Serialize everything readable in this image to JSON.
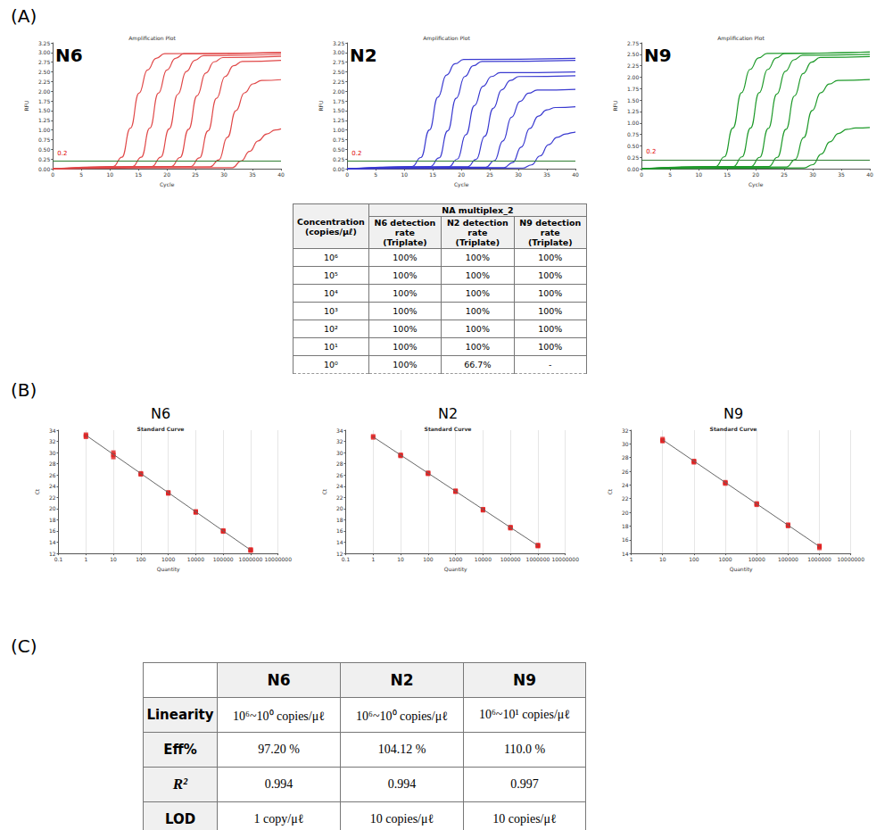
{
  "panel_labels": [
    "(A)",
    "(B)",
    "(C)"
  ],
  "chart_data": [
    {
      "type": "line",
      "title": "Amplification Plot",
      "annotation": "N6",
      "x_label": "Cycle",
      "y_label": "RFU",
      "xlim": [
        0,
        40
      ],
      "xticks": [
        0,
        5,
        10,
        15,
        20,
        25,
        30,
        35,
        40
      ],
      "ylim": [
        0,
        3.25
      ],
      "yticks": [
        {
          "value": 0,
          "label": "0.00"
        },
        {
          "value": 0.25,
          "label": "0.25"
        },
        {
          "value": 0.5,
          "label": "0.50"
        },
        {
          "value": 0.75,
          "label": "0.75"
        },
        {
          "value": 1,
          "label": "1.00"
        },
        {
          "value": 1.25,
          "label": "1.25"
        },
        {
          "value": 1.5,
          "label": "1.50"
        },
        {
          "value": 1.75,
          "label": "1.75"
        },
        {
          "value": 2,
          "label": "2.00"
        },
        {
          "value": 2.25,
          "label": "2.25"
        },
        {
          "value": 2.5,
          "label": "2.50"
        },
        {
          "value": 2.75,
          "label": "2.75"
        },
        {
          "value": 3,
          "label": "3.00"
        },
        {
          "value": 3.25,
          "label": "3.25"
        }
      ],
      "threshold": 0.2,
      "grid": false,
      "color": "#e04848",
      "line_style": "solid",
      "series": [
        {
          "x": [
            0,
            10.6,
            12.1,
            13.6,
            15.1,
            16.6,
            18.1,
            19.6,
            40
          ],
          "values": [
            0,
            0.06,
            0.3,
            1.05,
            1.95,
            2.55,
            2.85,
            2.97,
            3.0
          ]
        },
        {
          "x": [
            0,
            14,
            15.5,
            17,
            18.5,
            20,
            21.5,
            23,
            40
          ],
          "values": [
            0,
            0.06,
            0.3,
            1.05,
            1.95,
            2.55,
            2.85,
            2.97,
            3.0
          ]
        },
        {
          "x": [
            0,
            17.4,
            18.9,
            20.4,
            21.9,
            23.4,
            24.9,
            26.4,
            40
          ],
          "values": [
            0,
            0.06,
            0.3,
            1.03,
            1.92,
            2.51,
            2.8,
            2.92,
            2.95
          ]
        },
        {
          "x": [
            0,
            20.8,
            22.3,
            23.8,
            25.3,
            26.8,
            28.3,
            29.8,
            40
          ],
          "values": [
            0,
            0.06,
            0.29,
            1.02,
            1.89,
            2.47,
            2.76,
            2.87,
            2.9
          ]
        },
        {
          "x": [
            0,
            24.2,
            25.7,
            27.2,
            28.7,
            30.2,
            31.7,
            33.2,
            40
          ],
          "values": [
            0,
            0.06,
            0.28,
            0.98,
            1.82,
            2.38,
            2.66,
            2.77,
            2.8
          ]
        },
        {
          "x": [
            0,
            27.6,
            29.1,
            30.6,
            32.1,
            33.6,
            35.1,
            36.6,
            40
          ],
          "values": [
            0,
            0.05,
            0.23,
            0.81,
            1.5,
            1.96,
            2.19,
            2.28,
            2.3
          ]
        },
        {
          "x": [
            0,
            31.5,
            33,
            34.5,
            36,
            37.5,
            39,
            40
          ],
          "values": [
            0,
            0.03,
            0.2,
            0.45,
            0.72,
            0.9,
            1.0,
            1.03
          ]
        }
      ]
    },
    {
      "type": "line",
      "title": "Amplification Plot",
      "annotation": "N2",
      "x_label": "Cycle",
      "y_label": "RFU",
      "xlim": [
        0,
        40
      ],
      "xticks": [
        0,
        5,
        10,
        15,
        20,
        25,
        30,
        35,
        40
      ],
      "ylim": [
        0,
        3.25
      ],
      "yticks": [
        {
          "value": 0,
          "label": "0.00"
        },
        {
          "value": 0.25,
          "label": "0.25"
        },
        {
          "value": 0.5,
          "label": "0.50"
        },
        {
          "value": 0.75,
          "label": "0.75"
        },
        {
          "value": 1,
          "label": "1.00"
        },
        {
          "value": 1.25,
          "label": "1.25"
        },
        {
          "value": 1.5,
          "label": "1.50"
        },
        {
          "value": 1.75,
          "label": "1.75"
        },
        {
          "value": 2,
          "label": "2.00"
        },
        {
          "value": 2.25,
          "label": "2.25"
        },
        {
          "value": 2.5,
          "label": "2.50"
        },
        {
          "value": 2.75,
          "label": "2.75"
        },
        {
          "value": 3,
          "label": "3.00"
        },
        {
          "value": 3.25,
          "label": "3.25"
        }
      ],
      "threshold": 0.2,
      "grid": false,
      "color": "#3a3ad0",
      "line_style": "solid",
      "series": [
        {
          "x": [
            0,
            11.4,
            12.9,
            14.4,
            15.9,
            17.4,
            18.9,
            20.4,
            40
          ],
          "values": [
            0,
            0.06,
            0.29,
            1.0,
            1.85,
            2.42,
            2.71,
            2.82,
            2.85
          ]
        },
        {
          "x": [
            0,
            14.6,
            16.1,
            17.6,
            19.1,
            20.6,
            22.1,
            23.6,
            40
          ],
          "values": [
            0,
            0.06,
            0.28,
            0.98,
            1.82,
            2.38,
            2.66,
            2.77,
            2.8
          ]
        },
        {
          "x": [
            0,
            17.8,
            19.3,
            20.8,
            22.3,
            23.8,
            25.3,
            26.8,
            40
          ],
          "values": [
            0,
            0.05,
            0.25,
            0.88,
            1.63,
            2.13,
            2.38,
            2.48,
            2.5
          ]
        },
        {
          "x": [
            0,
            21.1,
            22.6,
            24.1,
            25.6,
            27.1,
            28.6,
            30.1,
            40
          ],
          "values": [
            0,
            0.05,
            0.24,
            0.84,
            1.56,
            2.04,
            2.28,
            2.38,
            2.4
          ]
        },
        {
          "x": [
            0,
            24.3,
            25.8,
            27.3,
            28.8,
            30.3,
            31.8,
            33.3,
            40
          ],
          "values": [
            0,
            0.04,
            0.21,
            0.72,
            1.33,
            1.74,
            1.95,
            2.03,
            2.05
          ]
        },
        {
          "x": [
            0,
            27.5,
            29,
            30.5,
            32,
            33.5,
            35,
            36.5,
            40
          ],
          "values": [
            0,
            0.03,
            0.16,
            0.56,
            1.04,
            1.36,
            1.52,
            1.58,
            1.6
          ]
        },
        {
          "x": [
            0,
            30.8,
            32.3,
            33.8,
            35.3,
            36.8,
            38.3,
            39.8,
            40
          ],
          "values": [
            0,
            0.02,
            0.1,
            0.33,
            0.62,
            0.81,
            0.9,
            0.94,
            0.95
          ]
        }
      ]
    },
    {
      "type": "line",
      "title": "Amplification Plot",
      "annotation": "N9",
      "x_label": "Cycle",
      "y_label": "RFU",
      "xlim": [
        0,
        40
      ],
      "xticks": [
        0,
        5,
        10,
        15,
        20,
        25,
        30,
        35,
        40
      ],
      "ylim": [
        0,
        2.75
      ],
      "yticks": [
        {
          "value": 0,
          "label": "0.00"
        },
        {
          "value": 0.25,
          "label": "0.25"
        },
        {
          "value": 0.5,
          "label": "0.50"
        },
        {
          "value": 0.75,
          "label": "0.75"
        },
        {
          "value": 1,
          "label": "1.00"
        },
        {
          "value": 1.25,
          "label": "1.25"
        },
        {
          "value": 1.5,
          "label": "1.50"
        },
        {
          "value": 1.75,
          "label": "1.75"
        },
        {
          "value": 2,
          "label": "2.00"
        },
        {
          "value": 2.25,
          "label": "2.25"
        },
        {
          "value": 2.5,
          "label": "2.50"
        },
        {
          "value": 2.75,
          "label": "2.75"
        }
      ],
      "threshold": 0.2,
      "grid": false,
      "color": "#1e9a2a",
      "line_style": "solid",
      "series": [
        {
          "x": [
            0,
            13,
            14.5,
            16,
            17.5,
            19,
            20.5,
            22,
            40
          ],
          "values": [
            0,
            0.05,
            0.26,
            0.89,
            1.66,
            2.17,
            2.42,
            2.52,
            2.55
          ]
        },
        {
          "x": [
            0,
            16.1,
            17.6,
            19.1,
            20.6,
            22.1,
            23.6,
            25.1,
            40
          ],
          "values": [
            0,
            0.05,
            0.26,
            0.89,
            1.66,
            2.17,
            2.42,
            2.52,
            2.55
          ]
        },
        {
          "x": [
            0,
            19.2,
            20.7,
            22.2,
            23.7,
            25.2,
            26.7,
            28.2,
            40
          ],
          "values": [
            0,
            0.05,
            0.25,
            0.88,
            1.63,
            2.13,
            2.38,
            2.48,
            2.5
          ]
        },
        {
          "x": [
            0,
            22.3,
            23.8,
            25.3,
            26.8,
            28.3,
            29.8,
            31.3,
            40
          ],
          "values": [
            0,
            0.05,
            0.25,
            0.86,
            1.59,
            2.08,
            2.33,
            2.43,
            2.45
          ]
        },
        {
          "x": [
            0,
            25.4,
            26.9,
            28.4,
            29.9,
            31.4,
            32.9,
            34.4,
            40
          ],
          "values": [
            0,
            0.04,
            0.2,
            0.68,
            1.27,
            1.66,
            1.85,
            1.93,
            1.95
          ]
        },
        {
          "x": [
            0,
            28.5,
            30,
            31.5,
            33,
            34.5,
            36,
            37.5,
            40
          ],
          "values": [
            0,
            0.02,
            0.09,
            0.32,
            0.59,
            0.77,
            0.86,
            0.89,
            0.9
          ]
        }
      ]
    },
    {
      "type": "scatter",
      "heading": "N6",
      "title": "Standard Curve",
      "x_label": "Quantity",
      "y_label": "Ct",
      "log": "x",
      "xlim": [
        0.1,
        10000000
      ],
      "xticks": [
        0.1,
        1,
        10,
        100,
        1000,
        10000,
        100000,
        1000000,
        10000000
      ],
      "ylim": [
        12,
        34
      ],
      "yticks": [
        12,
        14,
        16,
        18,
        20,
        22,
        24,
        26,
        28,
        30,
        32,
        34
      ],
      "grid": true,
      "color": "#e02020",
      "marker": "square",
      "points": {
        "x": [
          1,
          1,
          1,
          10,
          10,
          10,
          100,
          100,
          100,
          1000,
          1000,
          1000,
          10000,
          10000,
          10000,
          100000,
          100000,
          100000,
          1000000,
          1000000,
          1000000
        ],
        "values": [
          32.8,
          33.0,
          33.2,
          29.2,
          29.6,
          30.0,
          26.1,
          26.2,
          26.3,
          22.7,
          22.8,
          22.9,
          19.3,
          19.4,
          19.5,
          15.9,
          16.0,
          16.1,
          12.5,
          12.6,
          12.7
        ]
      },
      "fit": {
        "x": [
          1,
          1000000
        ],
        "values": [
          33.1,
          12.6
        ]
      }
    },
    {
      "type": "scatter",
      "heading": "N2",
      "title": "Standard Curve",
      "x_label": "Quantity",
      "y_label": "Ct",
      "log": "x",
      "xlim": [
        0.1,
        10000000
      ],
      "xticks": [
        0.1,
        1,
        10,
        100,
        1000,
        10000,
        100000,
        1000000,
        10000000
      ],
      "ylim": [
        12,
        34
      ],
      "yticks": [
        12,
        14,
        16,
        18,
        20,
        22,
        24,
        26,
        28,
        30,
        32,
        34
      ],
      "grid": true,
      "color": "#e02020",
      "marker": "square",
      "points": {
        "x": [
          1,
          1,
          10,
          10,
          10,
          100,
          100,
          100,
          1000,
          1000,
          1000,
          10000,
          10000,
          10000,
          100000,
          100000,
          100000,
          1000000,
          1000000,
          1000000
        ],
        "values": [
          32.7,
          32.9,
          29.4,
          29.5,
          29.6,
          26.2,
          26.3,
          26.4,
          23.0,
          23.1,
          23.2,
          19.7,
          19.8,
          19.9,
          16.5,
          16.6,
          16.7,
          13.3,
          13.4,
          13.5
        ]
      },
      "fit": {
        "x": [
          1,
          1000000
        ],
        "values": [
          32.8,
          13.4
        ]
      }
    },
    {
      "type": "scatter",
      "heading": "N9",
      "title": "Standard Curve",
      "x_label": "Quantity",
      "y_label": "Ct",
      "log": "x",
      "xlim": [
        1,
        10000000
      ],
      "xticks": [
        1,
        10,
        100,
        1000,
        10000,
        100000,
        1000000,
        10000000
      ],
      "ylim": [
        14,
        32
      ],
      "yticks": [
        14,
        16,
        18,
        20,
        22,
        24,
        26,
        28,
        30,
        32
      ],
      "grid": true,
      "color": "#e02020",
      "marker": "square",
      "points": {
        "x": [
          10,
          10,
          10,
          100,
          100,
          100,
          1000,
          1000,
          1000,
          10000,
          10000,
          10000,
          100000,
          100000,
          100000,
          1000000,
          1000000,
          1000000
        ],
        "values": [
          30.4,
          30.5,
          30.7,
          27.3,
          27.4,
          27.5,
          24.2,
          24.3,
          24.4,
          21.1,
          21.2,
          21.3,
          18.0,
          18.1,
          18.2,
          14.8,
          15.0,
          15.1
        ]
      },
      "fit": {
        "x": [
          10,
          1000000
        ],
        "values": [
          30.6,
          15.0
        ]
      }
    }
  ],
  "detection_table": {
    "row_header": "Concentration (copies/μℓ)",
    "group": "NA multiplex_2",
    "columns": [
      "N6 detection rate (Triplate)",
      "N2 detection rate (Triplate)",
      "N9 detection rate (Triplate)"
    ],
    "rows": [
      [
        "10⁶",
        "100%",
        "100%",
        "100%"
      ],
      [
        "10⁵",
        "100%",
        "100%",
        "100%"
      ],
      [
        "10⁴",
        "100%",
        "100%",
        "100%"
      ],
      [
        "10³",
        "100%",
        "100%",
        "100%"
      ],
      [
        "10²",
        "100%",
        "100%",
        "100%"
      ],
      [
        "10¹",
        "100%",
        "100%",
        "100%"
      ],
      [
        "10⁰",
        "100%",
        "66.7%",
        "-"
      ]
    ]
  },
  "summary_table": {
    "columns": [
      "N6",
      "N2",
      "N9"
    ],
    "rows": [
      {
        "label": "Linearity",
        "cells": [
          "10⁶~10⁰ copies/μℓ",
          "10⁶~10⁰ copies/μℓ",
          "10⁶~10¹ copies/μℓ"
        ]
      },
      {
        "label": "Eff%",
        "cells": [
          "97.20 %",
          "104.12 %",
          "110.0 %"
        ]
      },
      {
        "label": "R²",
        "cells": [
          "0.994",
          "0.994",
          "0.997"
        ]
      },
      {
        "label": "LOD",
        "cells": [
          "1 copy/μℓ",
          "10 copies/μℓ",
          "10 copies/μℓ"
        ]
      }
    ]
  }
}
